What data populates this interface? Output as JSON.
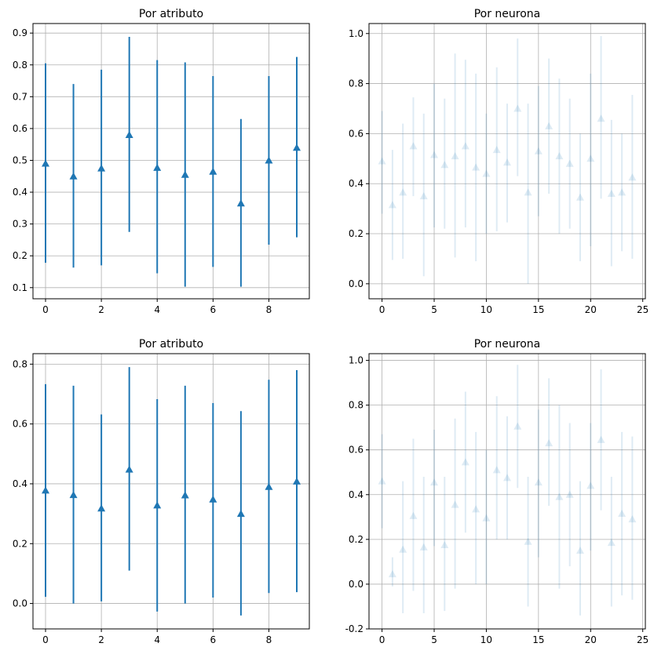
{
  "chart_data": [
    {
      "type": "errorbar",
      "title": "Por atributo",
      "xlim": [
        -0.45,
        9.45
      ],
      "ylim": [
        0.065,
        0.93
      ],
      "xticks": [
        0,
        2,
        4,
        6,
        8
      ],
      "yticks": [
        0.1,
        0.2,
        0.3,
        0.4,
        0.5,
        0.6,
        0.7,
        0.8,
        0.9
      ],
      "grid": true,
      "marker": "triangle-up",
      "color": "#1f77b4",
      "alpha": 1.0,
      "x": [
        0,
        1,
        2,
        3,
        4,
        5,
        6,
        7,
        8,
        9
      ],
      "y": [
        0.49,
        0.45,
        0.475,
        0.58,
        0.477,
        0.455,
        0.465,
        0.365,
        0.5,
        0.54
      ],
      "yerr_low": [
        0.178,
        0.163,
        0.17,
        0.275,
        0.145,
        0.103,
        0.165,
        0.103,
        0.235,
        0.258
      ],
      "yerr_high": [
        0.805,
        0.74,
        0.785,
        0.888,
        0.815,
        0.808,
        0.765,
        0.63,
        0.765,
        0.825
      ]
    },
    {
      "type": "errorbar",
      "title": "Por neurona",
      "xlim": [
        -1.25,
        25.25
      ],
      "ylim": [
        -0.06,
        1.04
      ],
      "xticks": [
        0,
        5,
        10,
        15,
        20,
        25
      ],
      "yticks": [
        0.0,
        0.2,
        0.4,
        0.6,
        0.8,
        1.0
      ],
      "grid": true,
      "marker": "triangle-up",
      "color": "#1f77b4",
      "alpha": 0.15,
      "x": [
        0,
        1,
        2,
        3,
        4,
        5,
        6,
        7,
        8,
        9,
        10,
        11,
        12,
        13,
        14,
        15,
        16,
        17,
        18,
        19,
        20,
        21,
        22,
        23,
        24
      ],
      "y": [
        0.49,
        0.315,
        0.365,
        0.55,
        0.35,
        0.515,
        0.475,
        0.51,
        0.55,
        0.465,
        0.44,
        0.535,
        0.485,
        0.7,
        0.365,
        0.53,
        0.63,
        0.51,
        0.48,
        0.345,
        0.5,
        0.66,
        0.36,
        0.365,
        0.425
      ],
      "yerr_low": [
        0.28,
        0.095,
        0.1,
        0.35,
        0.03,
        0.225,
        0.22,
        0.105,
        0.225,
        0.09,
        0.2,
        0.21,
        0.245,
        0.43,
        0.0,
        0.27,
        0.36,
        0.2,
        0.22,
        0.09,
        0.15,
        0.34,
        0.07,
        0.13,
        0.1
      ],
      "yerr_high": [
        0.69,
        0.535,
        0.64,
        0.745,
        0.68,
        0.8,
        0.74,
        0.92,
        0.895,
        0.84,
        0.68,
        0.865,
        0.72,
        0.98,
        0.72,
        0.79,
        0.9,
        0.82,
        0.74,
        0.6,
        0.84,
        0.99,
        0.655,
        0.6,
        0.755
      ]
    },
    {
      "type": "errorbar",
      "title": "Por atributo",
      "xlim": [
        -0.45,
        9.45
      ],
      "ylim": [
        -0.085,
        0.835
      ],
      "xticks": [
        0,
        2,
        4,
        6,
        8
      ],
      "yticks": [
        0.0,
        0.2,
        0.4,
        0.6,
        0.8
      ],
      "grid": true,
      "marker": "triangle-up",
      "color": "#1f77b4",
      "alpha": 1.0,
      "x": [
        0,
        1,
        2,
        3,
        4,
        5,
        6,
        7,
        8,
        9
      ],
      "y": [
        0.378,
        0.363,
        0.318,
        0.448,
        0.328,
        0.362,
        0.348,
        0.3,
        0.39,
        0.408
      ],
      "yerr_low": [
        0.022,
        0.0,
        0.007,
        0.11,
        -0.027,
        0.0,
        0.02,
        -0.04,
        0.035,
        0.038
      ],
      "yerr_high": [
        0.733,
        0.728,
        0.632,
        0.79,
        0.683,
        0.728,
        0.67,
        0.643,
        0.748,
        0.78
      ]
    },
    {
      "type": "errorbar",
      "title": "Por neurona",
      "xlim": [
        -1.25,
        25.25
      ],
      "ylim": [
        -0.2,
        1.03
      ],
      "xticks": [
        0,
        5,
        10,
        15,
        20,
        25
      ],
      "yticks": [
        -0.2,
        0.0,
        0.2,
        0.4,
        0.6,
        0.8,
        1.0
      ],
      "grid": true,
      "marker": "triangle-up",
      "color": "#1f77b4",
      "alpha": 0.15,
      "x": [
        0,
        1,
        2,
        3,
        4,
        5,
        6,
        7,
        8,
        9,
        10,
        11,
        12,
        13,
        14,
        15,
        16,
        17,
        18,
        19,
        20,
        21,
        22,
        23,
        24
      ],
      "y": [
        0.46,
        0.045,
        0.155,
        0.305,
        0.165,
        0.455,
        0.175,
        0.355,
        0.545,
        0.335,
        0.295,
        0.51,
        0.475,
        0.705,
        0.19,
        0.455,
        0.63,
        0.39,
        0.4,
        0.15,
        0.44,
        0.645,
        0.185,
        0.315,
        0.29
      ],
      "yerr_low": [
        0.25,
        -0.01,
        -0.13,
        -0.03,
        -0.13,
        0.17,
        -0.12,
        -0.02,
        0.23,
        0.0,
        0.0,
        0.2,
        0.2,
        0.43,
        -0.1,
        0.12,
        0.35,
        -0.02,
        0.08,
        -0.14,
        0.15,
        0.33,
        -0.1,
        -0.05,
        -0.07
      ],
      "yerr_high": [
        0.67,
        0.12,
        0.46,
        0.65,
        0.48,
        0.69,
        0.48,
        0.74,
        0.86,
        0.68,
        0.6,
        0.84,
        0.75,
        0.98,
        0.48,
        0.78,
        0.92,
        0.8,
        0.72,
        0.46,
        0.72,
        0.96,
        0.48,
        0.68,
        0.66
      ]
    }
  ]
}
